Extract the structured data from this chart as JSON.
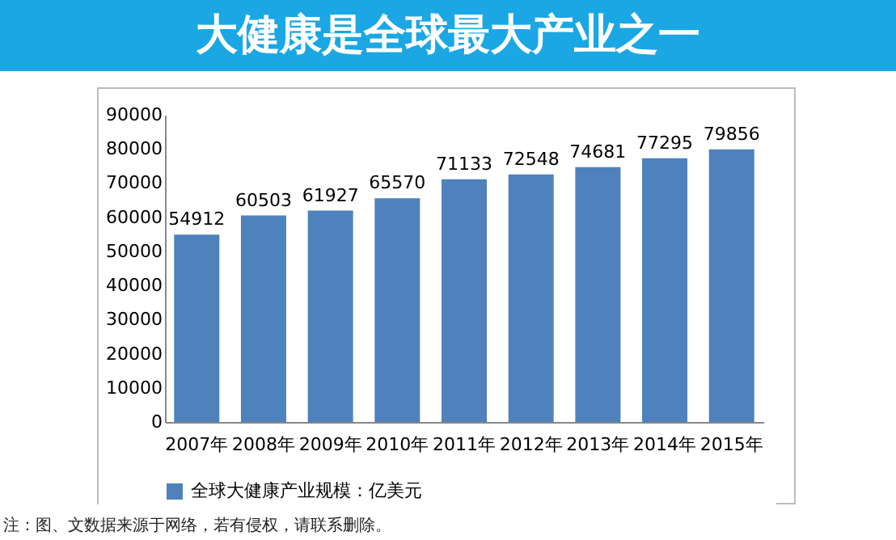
{
  "chart_data": {
    "type": "bar",
    "title": "大健康是全球最大产业之一",
    "categories": [
      "2007年",
      "2008年",
      "2009年",
      "2010年",
      "2011年",
      "2012年",
      "2013年",
      "2014年",
      "2015年"
    ],
    "series": [
      {
        "name": "全球大健康产业规模：亿美元",
        "color": "#4f81bd",
        "values": [
          54912,
          60503,
          61927,
          65570,
          71133,
          72548,
          74681,
          77295,
          79856
        ]
      }
    ],
    "ylim": [
      0,
      90000
    ],
    "yticks": [
      0,
      10000,
      20000,
      30000,
      40000,
      50000,
      60000,
      70000,
      80000,
      90000
    ],
    "grid": false,
    "legend": "bottom",
    "data_labels": true,
    "annotations": [
      "注：图、文数据来源于网络，若有侵权，请联系删除。"
    ]
  }
}
